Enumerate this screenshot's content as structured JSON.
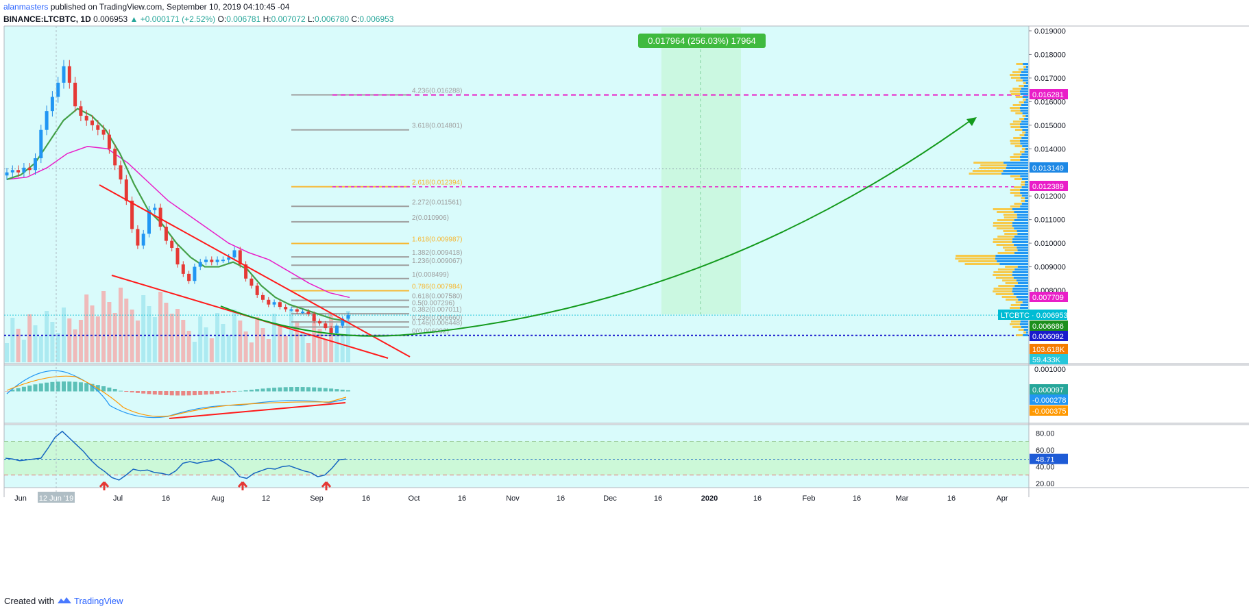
{
  "header": {
    "author": "alanmasters",
    "published": "published on TradingView.com, September 10, 2019 04:10:45 -04",
    "symbol": "BINANCE:LTCBTC, 1D",
    "last": "0.006953",
    "change": "▲ +0.000171 (+2.52%)",
    "o_label": "O:",
    "o": "0.006781",
    "h_label": "H:",
    "h": "0.007072",
    "l_label": "L:",
    "l": "0.006780",
    "c_label": "C:",
    "c": "0.006953"
  },
  "footer": {
    "created": "Created with",
    "brand": "TradingView"
  },
  "colors": {
    "panel_bg": "#d9fbfb",
    "up": "#26a69a",
    "up_body": "#2196f3",
    "down": "#e53935",
    "ema_fast": "#43a047",
    "ema_slow": "#e91ec8",
    "trend": "#ff1a1a",
    "projection": "#139a1c",
    "fib_gray": "#9e9e9e",
    "fib_orange": "#f7b731",
    "rsi": "#1565c0",
    "macd": "#2196f3",
    "signal": "#ff9800"
  },
  "chart_data": [
    {
      "type": "candlestick",
      "symbol": "LTCBTC",
      "timeframe": "1D",
      "x_ticks": [
        "Jun",
        "Jul",
        "16",
        "Aug",
        "12",
        "Sep",
        "16",
        "Oct",
        "16",
        "Nov",
        "16",
        "Dec",
        "16",
        "2020",
        "16",
        "Feb",
        "16",
        "Mar",
        "16",
        "Apr"
      ],
      "crosshair_label": "12 Jun '19",
      "y_ticks": [
        "0.019000",
        "0.018000",
        "0.017000",
        "0.016000",
        "0.015000",
        "0.014000",
        "0.012000",
        "0.011000",
        "0.010000",
        "0.009000",
        "0.008000"
      ],
      "close_approx": [
        0.013,
        0.0131,
        0.013,
        0.0132,
        0.0131,
        0.0136,
        0.0148,
        0.0156,
        0.0162,
        0.0168,
        0.0175,
        0.0168,
        0.0158,
        0.0154,
        0.0152,
        0.015,
        0.0148,
        0.0146,
        0.014,
        0.0133,
        0.0127,
        0.0118,
        0.0106,
        0.0099,
        0.0104,
        0.0114,
        0.0115,
        0.0107,
        0.0101,
        0.0098,
        0.0091,
        0.0087,
        0.0084,
        0.009,
        0.0092,
        0.0093,
        0.0092,
        0.0093,
        0.0093,
        0.0094,
        0.0097,
        0.0091,
        0.0085,
        0.0082,
        0.0078,
        0.0076,
        0.0074,
        0.0075,
        0.0073,
        0.0072,
        0.0072,
        0.0071,
        0.0071,
        0.007,
        0.0067,
        0.0066,
        0.0064,
        0.0062,
        0.0065,
        0.0068,
        0.006953
      ],
      "ema_fast_approx": [
        0.0127,
        0.0129,
        0.0134,
        0.0143,
        0.0152,
        0.0157,
        0.0154,
        0.0148,
        0.0138,
        0.0125,
        0.0114,
        0.0108,
        0.01,
        0.0094,
        0.009,
        0.009,
        0.0092,
        0.0089,
        0.0082,
        0.0077,
        0.0074,
        0.0072,
        0.007,
        0.0068,
        0.0067
      ],
      "ema_slow_approx": [
        0.0127,
        0.0128,
        0.0132,
        0.0138,
        0.0141,
        0.014,
        0.0134,
        0.0126,
        0.0118,
        0.0112,
        0.0106,
        0.01,
        0.0096,
        0.0093,
        0.0088,
        0.0083,
        0.0079,
        0.0077
      ],
      "price_labels": [
        {
          "text": "0.016281",
          "color": "#e91ec8"
        },
        {
          "text": "0.013149",
          "color": "#1e88e5"
        },
        {
          "text": "0.012389",
          "color": "#e91ec8"
        },
        {
          "text": "0.007709",
          "color": "#e91ec8"
        },
        {
          "text": "LTCBTC · 0.006953",
          "color": "#00bcd4"
        },
        {
          "text": "0.006686",
          "color": "#1b8f1b"
        },
        {
          "text": "0.006092",
          "color": "#1a1acc"
        },
        {
          "text": "103.618K",
          "color": "#f57c00"
        },
        {
          "text": "59.433K",
          "color": "#26c6da"
        }
      ],
      "fib_levels": [
        {
          "label": "4.236(0.016288)",
          "value": 0.016288,
          "color": "#9e9e9e"
        },
        {
          "label": "3.618(0.014801)",
          "value": 0.014801,
          "color": "#9e9e9e"
        },
        {
          "label": "2.618(0.012394)",
          "value": 0.012394,
          "color": "#f7b731"
        },
        {
          "label": "2.272(0.011561)",
          "value": 0.011561,
          "color": "#9e9e9e"
        },
        {
          "label": "2(0.010906)",
          "value": 0.010906,
          "color": "#9e9e9e"
        },
        {
          "label": "1.618(0.009987)",
          "value": 0.009987,
          "color": "#f7b731"
        },
        {
          "label": "1.382(0.009418)",
          "value": 0.009418,
          "color": "#9e9e9e"
        },
        {
          "label": "1.236(0.009067)",
          "value": 0.009067,
          "color": "#9e9e9e"
        },
        {
          "label": "1(0.008499)",
          "value": 0.008499,
          "color": "#9e9e9e"
        },
        {
          "label": "0.786(0.007984)",
          "value": 0.007984,
          "color": "#f7b731"
        },
        {
          "label": "0.618(0.007580)",
          "value": 0.00758,
          "color": "#9e9e9e"
        },
        {
          "label": "0.5(0.007296)",
          "value": 0.007296,
          "color": "#9e9e9e"
        },
        {
          "label": "0.382(0.007011)",
          "value": 0.007011,
          "color": "#9e9e9e"
        },
        {
          "label": "0.236(0.006660)",
          "value": 0.00666,
          "color": "#9e9e9e"
        },
        {
          "label": "0.146(0.006448)",
          "value": 0.006448,
          "color": "#9e9e9e"
        },
        {
          "label": "0(0.006092)",
          "value": 0.006092,
          "color": "#9e9e9e"
        }
      ],
      "target_box_label": "0.017964 (256.03%) 17964"
    },
    {
      "type": "histogram",
      "indicator": "MACD",
      "y_ticks": [
        "0.001000"
      ],
      "value_labels": [
        {
          "text": "0.000097",
          "color": "#26a69a"
        },
        {
          "text": "-0.000278",
          "color": "#2196f3"
        },
        {
          "text": "-0.000375",
          "color": "#ff9800"
        }
      ]
    },
    {
      "type": "line",
      "indicator": "RSI",
      "y_ticks": [
        "80.00",
        "60.00",
        "40.00",
        "20.00"
      ],
      "ylim": [
        15,
        90
      ],
      "bands": [
        70,
        30
      ],
      "last_value_label": "48.71",
      "values_approx": [
        50,
        49,
        47,
        48,
        49,
        50,
        62,
        75,
        82,
        74,
        66,
        58,
        48,
        40,
        34,
        27,
        24,
        30,
        37,
        35,
        36,
        33,
        32,
        30,
        35,
        44,
        46,
        44,
        46,
        47,
        49,
        44,
        38,
        28,
        26,
        32,
        35,
        38,
        37,
        40,
        41,
        38,
        35,
        33,
        28,
        30,
        38,
        48,
        49
      ]
    }
  ]
}
